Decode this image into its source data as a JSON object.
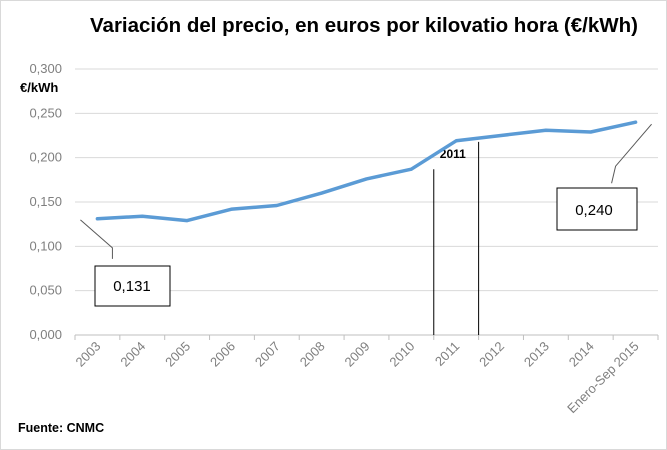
{
  "title": "Variación del precio, en euros por kilovatio hora (€/kWh)",
  "source": "Fuente: CNMC",
  "chart_data": {
    "type": "line",
    "title": "Variación del precio, en euros por kilovatio hora (€/kWh)",
    "ylabel": "€/kWh",
    "xlabel": "",
    "ylim": [
      0,
      0.3
    ],
    "yticks": [
      "0,000",
      "0,050",
      "0,100",
      "0,150",
      "0,200",
      "0,250",
      "0,300"
    ],
    "grid": true,
    "categories": [
      "2003",
      "2004",
      "2005",
      "2006",
      "2007",
      "2008",
      "2009",
      "2010",
      "2011",
      "2012",
      "2013",
      "2014",
      "Enero-Sep 2015"
    ],
    "series": [
      {
        "values": [
          0.131,
          0.134,
          0.129,
          0.142,
          0.146,
          0.16,
          0.176,
          0.187,
          0.219,
          0.225,
          0.231,
          0.229,
          0.24
        ],
        "color": "#5b9bd5"
      }
    ],
    "annotations": {
      "start_value": "0,131",
      "end_value": "0,240",
      "marker": "2011"
    }
  }
}
